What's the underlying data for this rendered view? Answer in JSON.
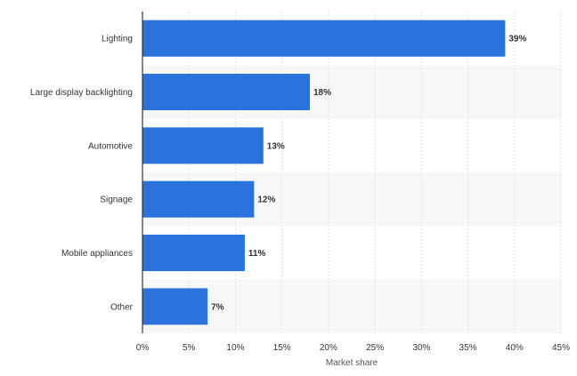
{
  "chart_data": {
    "type": "bar",
    "orientation": "horizontal",
    "categories": [
      "Lighting",
      "Large display backlighting",
      "Automotive",
      "Signage",
      "Mobile appliances",
      "Other"
    ],
    "values": [
      39,
      18,
      13,
      12,
      11,
      7
    ],
    "data_labels": [
      "39%",
      "18%",
      "13%",
      "12%",
      "11%",
      "7%"
    ],
    "xlabel": "Market share",
    "ylabel": "",
    "xlim": [
      0,
      45
    ],
    "x_ticks": [
      0,
      5,
      10,
      15,
      20,
      25,
      30,
      35,
      40,
      45
    ],
    "x_tick_labels": [
      "0%",
      "5%",
      "10%",
      "15%",
      "20%",
      "25%",
      "30%",
      "35%",
      "40%",
      "45%"
    ],
    "grid": true,
    "legend": "none",
    "colors": {
      "bar": "#2a73dc",
      "band": "#f7f7f7",
      "grid": "#e0e0e0",
      "axis": "#333333"
    }
  }
}
